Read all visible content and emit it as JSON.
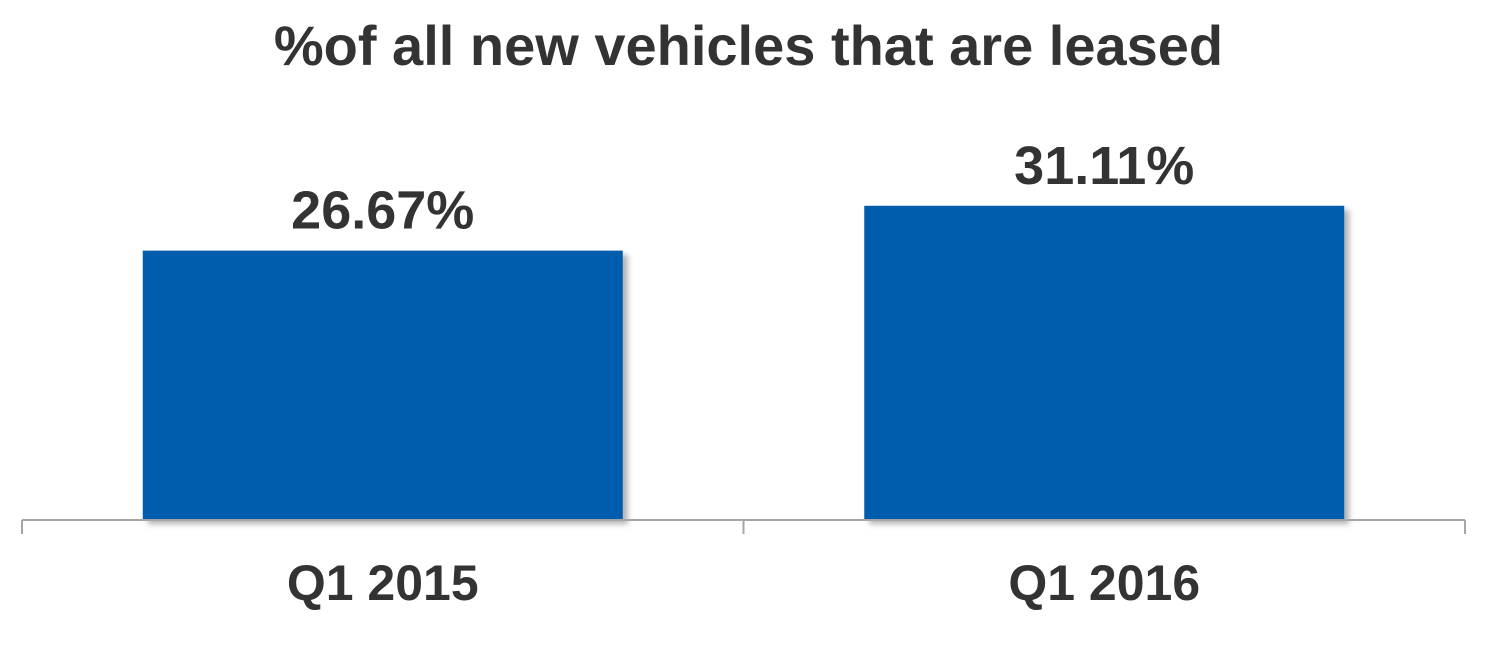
{
  "chart_data": {
    "type": "bar",
    "title": "%of all new vehicles that are leased",
    "categories": [
      "Q1 2015",
      "Q1 2016"
    ],
    "values": [
      26.67,
      31.11
    ],
    "value_labels": [
      "26.67%",
      "31.11%"
    ],
    "xlabel": "",
    "ylabel": "",
    "ylim": [
      0,
      36
    ],
    "grid": false,
    "legend": "none",
    "colors": {
      "bar": "#005BAC",
      "text": "#333333",
      "axis": "#A6A6A6"
    }
  }
}
